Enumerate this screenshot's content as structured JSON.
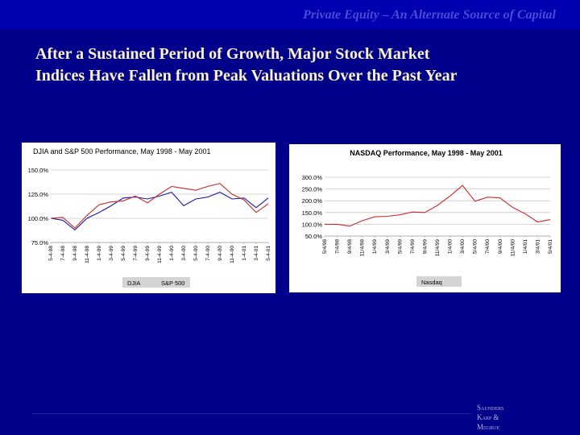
{
  "header": {
    "title": "Private Equity – An Alternate Source of Capital"
  },
  "slide": {
    "title_line1": "After a Sustained Period of Growth, Major Stock Market",
    "title_line2": "Indices Have Fallen from Peak Valuations Over the Past Year"
  },
  "logo": {
    "line1": "Saunders",
    "line2": "Karp &",
    "line3": "Megrue"
  },
  "colors": {
    "background": "#00008b",
    "djia": "#1a1aa6",
    "sp500": "#cc2a2a",
    "nasdaq": "#cc2a2a"
  },
  "chart_data": [
    {
      "type": "line",
      "title": "DJIA and S&P 500 Performance, May 1998 - May 2001",
      "yticks": [
        "150.0%",
        "125.0%",
        "100.0%",
        "75.0%"
      ],
      "ylim": [
        75,
        150
      ],
      "x": [
        "5-4-98",
        "7-4-98",
        "9-4-98",
        "11-4-98",
        "1-4-99",
        "3-4-99",
        "5-4-99",
        "7-4-99",
        "9-4-99",
        "11-4-99",
        "1-4-00",
        "3-4-00",
        "5-4-00",
        "7-4-00",
        "9-4-00",
        "11-4-00",
        "1-4-01",
        "3-4-01",
        "5-4-01"
      ],
      "series": [
        {
          "name": "DJIA",
          "values": [
            100,
            98,
            88,
            100,
            106,
            113,
            121,
            122,
            120,
            123,
            127,
            113,
            120,
            122,
            127,
            120,
            121,
            111,
            121
          ]
        },
        {
          "name": "S&P 500",
          "values": [
            100,
            101,
            90,
            103,
            114,
            117,
            118,
            123,
            116,
            125,
            133,
            131,
            129,
            133,
            136,
            125,
            119,
            106,
            115
          ]
        }
      ],
      "legend": "bottom"
    },
    {
      "type": "line",
      "title": "NASDAQ Performance, May 1998 - May 2001",
      "yticks": [
        "300.0%",
        "250.0%",
        "200.0%",
        "150.0%",
        "100.0%",
        "50.0%"
      ],
      "ylim": [
        50,
        300
      ],
      "x": [
        "5/4/98",
        "7/4/98",
        "9/4/98",
        "11/4/98",
        "1/4/99",
        "3/4/99",
        "5/4/99",
        "7/4/99",
        "9/4/99",
        "11/4/99",
        "1/4/00",
        "3/4/00",
        "5/4/00",
        "7/4/00",
        "9/4/00",
        "11/4/00",
        "1/4/01",
        "3/4/01",
        "5/4/01"
      ],
      "series": [
        {
          "name": "Nasdaq",
          "values": [
            100,
            100,
            92,
            115,
            132,
            134,
            140,
            152,
            150,
            180,
            220,
            265,
            198,
            215,
            212,
            172,
            145,
            110,
            120
          ]
        }
      ],
      "legend": "bottom"
    }
  ]
}
